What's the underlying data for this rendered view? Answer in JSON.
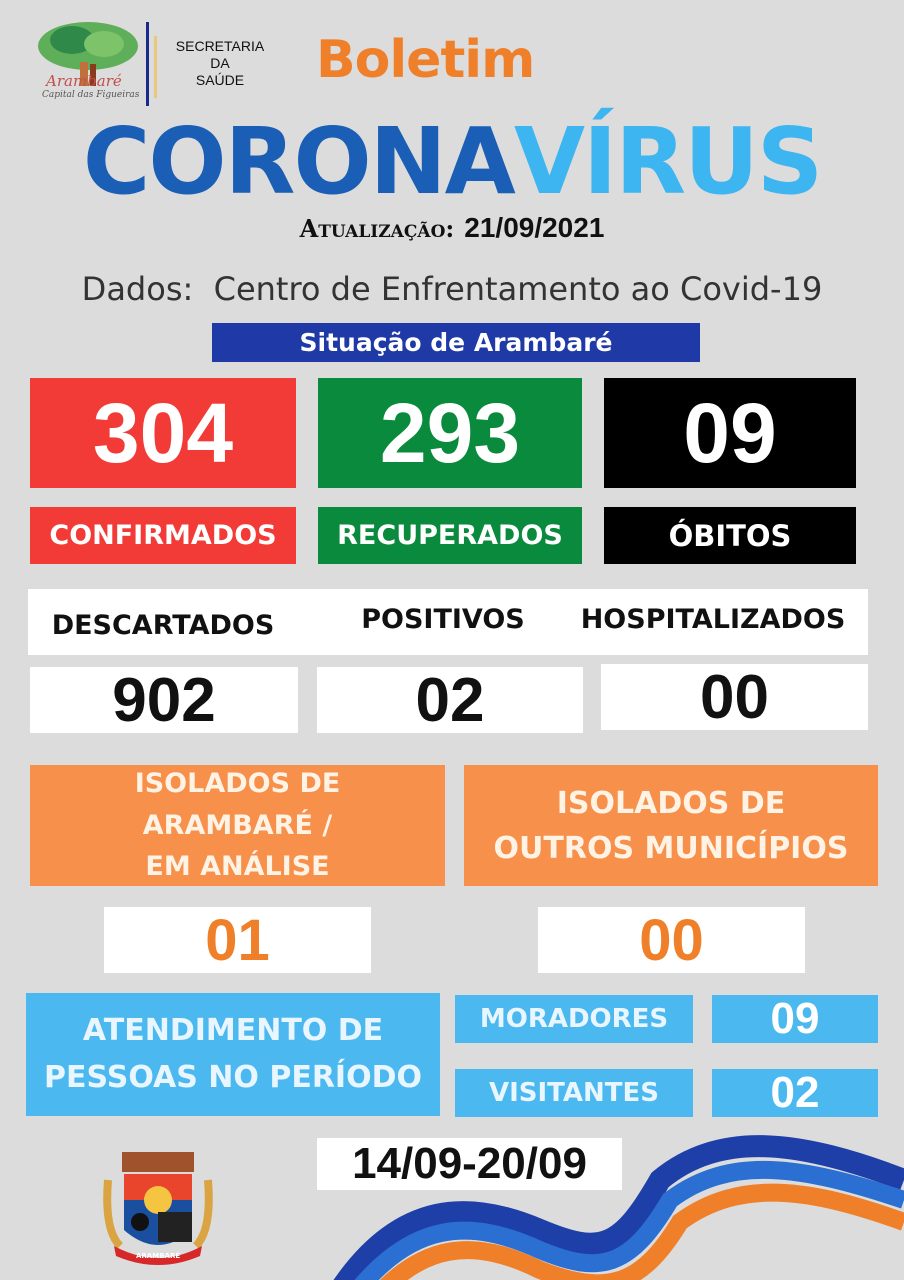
{
  "header": {
    "logo_text": "Arambaré",
    "logo_subtext": "Capital das Figueiras",
    "secretaria": [
      "SECRETARIA",
      "DA",
      "SAÚDE"
    ],
    "boletim": "Boletim",
    "title_part1": "CORONA",
    "title_part2": "VÍRUS",
    "update_label": "Atualização:",
    "update_date": "21/09/2021",
    "source": "Dados:  Centro de Enfrentamento ao Covid-19",
    "banner": "Situação de Arambaré"
  },
  "colors": {
    "confirmed": "#f23b36",
    "recovered": "#0a8a3c",
    "deaths": "#000000",
    "orange": "#f7904a",
    "light_blue": "#4bb9ef",
    "banner": "#1f3aa6",
    "corona": "#1a5eb5",
    "virus": "#3db5f0"
  },
  "stats": {
    "confirmed": {
      "value": "304",
      "label": "CONFIRMADOS"
    },
    "recovered": {
      "value": "293",
      "label": "RECUPERADOS"
    },
    "deaths": {
      "value": "09",
      "label": "ÓBITOS"
    }
  },
  "secondary": {
    "discarded": {
      "label": "DESCARTADOS",
      "value": "902"
    },
    "positive": {
      "label": "POSITIVOS",
      "value": "02"
    },
    "hospitalized": {
      "label": "HOSPITALIZADOS",
      "value": "00"
    }
  },
  "isolated": {
    "local": {
      "label": [
        "ISOLADOS DE",
        "ARAMBARÉ /",
        "EM ANÁLISE"
      ],
      "value": "01"
    },
    "others": {
      "label": [
        "ISOLADOS DE",
        "OUTROS MUNICÍPIOS"
      ],
      "value": "00"
    }
  },
  "attendance": {
    "label": [
      "ATENDIMENTO DE",
      "PESSOAS NO PERÍODO"
    ],
    "residents_label": "MORADORES",
    "residents_value": "09",
    "visitors_label": "VISITANTES",
    "visitors_value": "02",
    "period": "14/09-20/09"
  },
  "crest_text": "ARAMBARÉ"
}
